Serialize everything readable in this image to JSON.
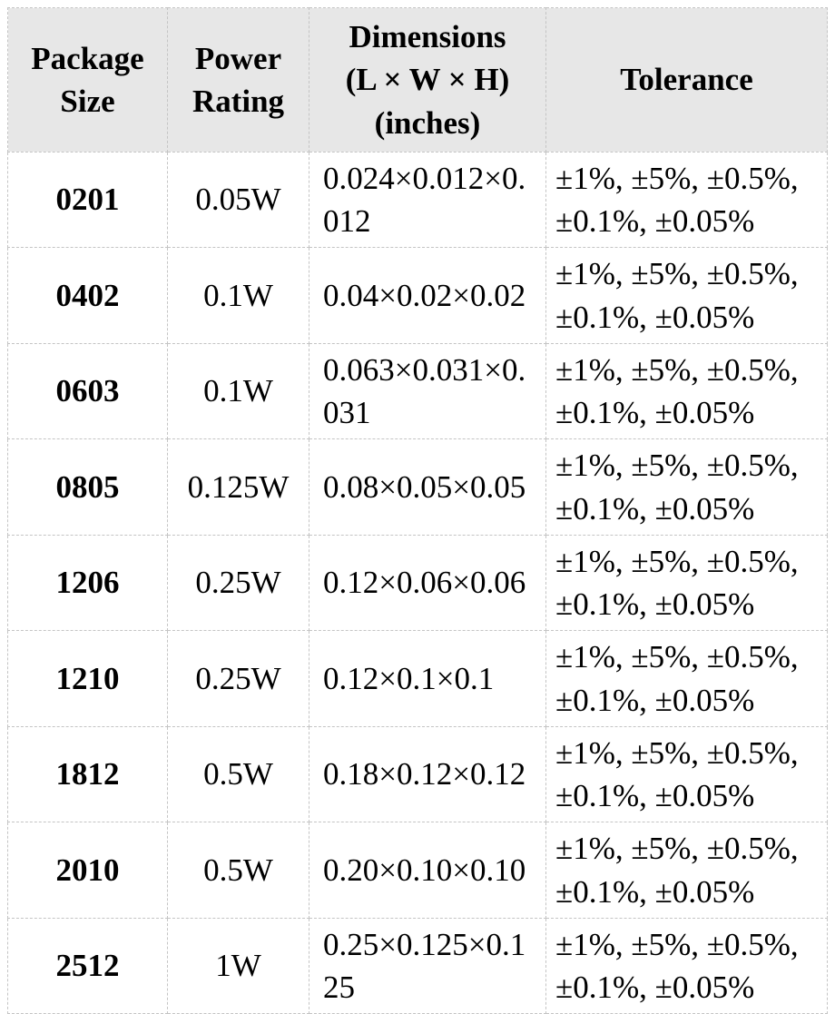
{
  "table": {
    "header_bg": "#e7e7e7",
    "border_color": "#c4c4c4",
    "columns": [
      {
        "id": "package_size",
        "label": "Package\nSize"
      },
      {
        "id": "power_rating",
        "label": "Power\nRating"
      },
      {
        "id": "dimensions",
        "label": "Dimensions\n(L × W × H)\n(inches)"
      },
      {
        "id": "tolerance",
        "label": "Tolerance"
      }
    ],
    "rows": [
      {
        "package_size": "0201",
        "power_rating": "0.05W",
        "dimensions": "0.024×0.012×0.012",
        "tolerance": "±1%, ±5%, ±0.5%, ±0.1%, ±0.05%"
      },
      {
        "package_size": "0402",
        "power_rating": "0.1W",
        "dimensions": "0.04×0.02×0.02",
        "tolerance": "±1%, ±5%, ±0.5%, ±0.1%, ±0.05%"
      },
      {
        "package_size": "0603",
        "power_rating": "0.1W",
        "dimensions": "0.063×0.031×0.031",
        "tolerance": "±1%, ±5%, ±0.5%, ±0.1%, ±0.05%"
      },
      {
        "package_size": "0805",
        "power_rating": "0.125W",
        "dimensions": "0.08×0.05×0.05",
        "tolerance": "±1%, ±5%, ±0.5%, ±0.1%, ±0.05%"
      },
      {
        "package_size": "1206",
        "power_rating": "0.25W",
        "dimensions": "0.12×0.06×0.06",
        "tolerance": "±1%, ±5%, ±0.5%, ±0.1%, ±0.05%"
      },
      {
        "package_size": "1210",
        "power_rating": "0.25W",
        "dimensions": "0.12×0.1×0.1",
        "tolerance": "±1%, ±5%, ±0.5%, ±0.1%, ±0.05%"
      },
      {
        "package_size": "1812",
        "power_rating": "0.5W",
        "dimensions": "0.18×0.12×0.12",
        "tolerance": "±1%, ±5%, ±0.5%, ±0.1%, ±0.05%"
      },
      {
        "package_size": "2010",
        "power_rating": "0.5W",
        "dimensions": "0.20×0.10×0.10",
        "tolerance": "±1%, ±5%, ±0.5%, ±0.1%, ±0.05%"
      },
      {
        "package_size": "2512",
        "power_rating": "1W",
        "dimensions": "0.25×0.125×0.125",
        "tolerance": "±1%, ±5%, ±0.5%, ±0.1%, ±0.05%"
      }
    ]
  }
}
